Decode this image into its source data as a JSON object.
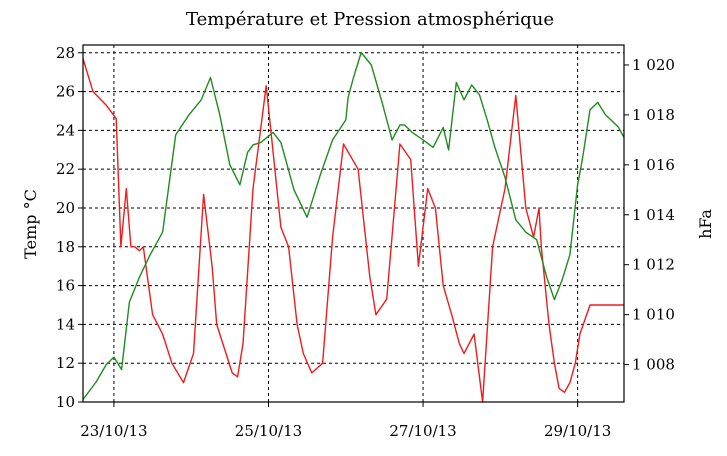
{
  "chart_data": {
    "type": "line",
    "title": "Température et Pression atmosphérique",
    "xlabel": "",
    "ylabel": "Temp °C",
    "y2label": "hFa",
    "x_tick_labels": [
      "23/10/13",
      "25/10/13",
      "27/10/13",
      "29/10/13"
    ],
    "x_tick_positions_day": [
      0,
      2,
      4,
      6
    ],
    "xlim_day": [
      -0.4,
      6.6
    ],
    "ylim": [
      10,
      28.4
    ],
    "y_ticks": [
      10,
      12,
      14,
      16,
      18,
      20,
      22,
      24,
      26,
      28
    ],
    "y2lim": [
      1006.5,
      1020.8
    ],
    "y2_ticks": [
      1008,
      1010,
      1012,
      1014,
      1016,
      1018,
      1020
    ],
    "y2_tick_labels": [
      "1 008",
      "1 010",
      "1 012",
      "1 014",
      "1 016",
      "1 018",
      "1 020"
    ],
    "grid": true,
    "series": [
      {
        "name": "Température",
        "axis": "left",
        "color": "#ee1c1c",
        "x_day": [
          -0.4,
          -0.27,
          -0.1,
          0.03,
          0.09,
          0.16,
          0.22,
          0.27,
          0.33,
          0.38,
          0.5,
          0.63,
          0.75,
          0.9,
          1.03,
          1.16,
          1.27,
          1.33,
          1.53,
          1.6,
          1.67,
          1.8,
          1.97,
          2.16,
          2.26,
          2.37,
          2.45,
          2.56,
          2.7,
          2.83,
          2.97,
          3.16,
          3.31,
          3.39,
          3.53,
          3.7,
          3.84,
          3.94,
          4.06,
          4.16,
          4.26,
          4.37,
          4.47,
          4.53,
          4.66,
          4.77,
          4.9,
          5.06,
          5.2,
          5.33,
          5.43,
          5.5,
          5.53,
          5.63,
          5.7,
          5.76,
          5.83,
          5.9,
          5.97,
          6.03,
          6.16,
          6.26,
          6.36,
          6.46,
          6.6
        ],
        "values": [
          27.7,
          26,
          25.3,
          24.6,
          18,
          21,
          18,
          18,
          17.8,
          18,
          14.5,
          13.5,
          12,
          11,
          12.5,
          20.7,
          17,
          14,
          11.5,
          11.3,
          13,
          21,
          26.3,
          19,
          18,
          14,
          12.5,
          11.5,
          12,
          18.5,
          23.3,
          22,
          16.5,
          14.5,
          15.3,
          23.3,
          22.5,
          17,
          21,
          20,
          16,
          14.5,
          13,
          12.5,
          13.5,
          10,
          18,
          21,
          25.8,
          20,
          18.5,
          20,
          18,
          14,
          12,
          10.7,
          10.5,
          11,
          12,
          13.5,
          15,
          15,
          15,
          15,
          15
        ]
      },
      {
        "name": "Pression",
        "axis": "right",
        "color": "#1f8c1f",
        "x_day": [
          -0.4,
          -0.23,
          -0.1,
          0.0,
          0.1,
          0.2,
          0.33,
          0.47,
          0.63,
          0.8,
          0.97,
          1.13,
          1.25,
          1.37,
          1.5,
          1.63,
          1.73,
          1.8,
          1.9,
          2.06,
          2.16,
          2.33,
          2.5,
          2.67,
          2.83,
          3.0,
          3.03,
          3.1,
          3.2,
          3.33,
          3.47,
          3.6,
          3.7,
          3.76,
          3.86,
          4.0,
          4.13,
          4.26,
          4.33,
          4.43,
          4.53,
          4.63,
          4.73,
          4.83,
          4.93,
          5.06,
          5.2,
          5.33,
          5.47,
          5.6,
          5.7,
          5.8,
          5.9,
          6.0,
          6.06,
          6.16,
          6.26,
          6.36,
          6.43,
          6.53,
          6.6
        ],
        "values": [
          1006.6,
          1007.3,
          1008,
          1008.3,
          1007.8,
          1010.5,
          1011.5,
          1012.4,
          1013.3,
          1017.2,
          1018,
          1018.6,
          1019.5,
          1018,
          1016,
          1015.2,
          1016.5,
          1016.8,
          1016.9,
          1017.3,
          1016.9,
          1015,
          1013.9,
          1015.6,
          1017,
          1017.8,
          1018.7,
          1019.5,
          1020.5,
          1020,
          1018.5,
          1017,
          1017.6,
          1017.6,
          1017.3,
          1017,
          1016.7,
          1017.5,
          1016.6,
          1019.3,
          1018.6,
          1019.2,
          1018.8,
          1017.8,
          1016.7,
          1015.5,
          1013.8,
          1013.3,
          1013,
          1011.5,
          1010.6,
          1011.4,
          1012.4,
          1015.2,
          1016.2,
          1018.2,
          1018.5,
          1018,
          1017.8,
          1017.5,
          1017.1
        ]
      }
    ]
  }
}
